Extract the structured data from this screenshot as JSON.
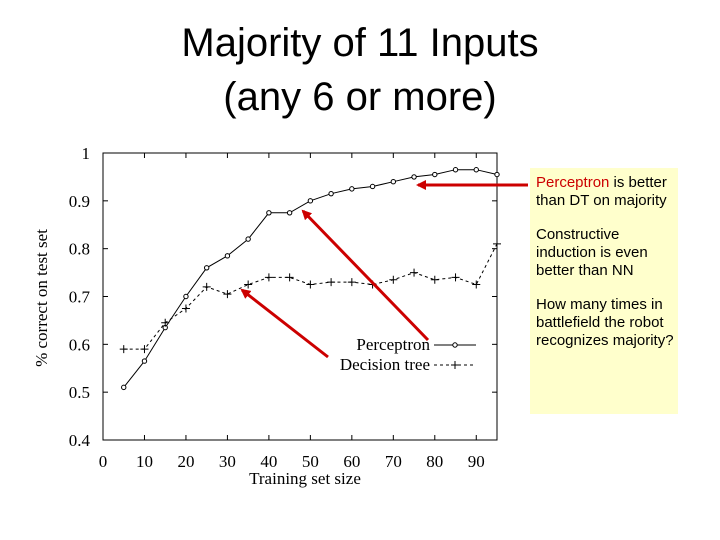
{
  "title_line1": "Majority of 11 Inputs",
  "title_line2": "(any 6 or more)",
  "notes": {
    "n1_highlight": "Perceptron",
    "n1_rest": " is better than DT on majority",
    "n2": "Constructive induction is even better than NN",
    "n3": "How many times in battlefield the robot recognizes majority?"
  },
  "colors": {
    "arrow": "#cc0000",
    "note_bg": "#ffffcc"
  },
  "chart_data": {
    "type": "line",
    "xlabel": "Training set size",
    "ylabel": "% correct on test set",
    "xlim": [
      0,
      95
    ],
    "ylim": [
      0.4,
      1.0
    ],
    "xticks": [
      0,
      10,
      20,
      30,
      40,
      50,
      60,
      70,
      80,
      90
    ],
    "yticks": [
      0.4,
      0.5,
      0.6,
      0.7,
      0.8,
      0.9,
      1
    ],
    "ytick_labels": [
      "0.4",
      "0.5",
      "0.6",
      "0.7",
      "0.8",
      "0.9",
      "1"
    ],
    "legend": "inside, middle-right",
    "grid": false,
    "series": [
      {
        "name": "Perceptron",
        "marker": "circle",
        "style": "solid",
        "points": [
          [
            5,
            0.51
          ],
          [
            10,
            0.565
          ],
          [
            15,
            0.635
          ],
          [
            20,
            0.7
          ],
          [
            25,
            0.76
          ],
          [
            30,
            0.785
          ],
          [
            35,
            0.82
          ],
          [
            40,
            0.875
          ],
          [
            45,
            0.875
          ],
          [
            50,
            0.9
          ],
          [
            55,
            0.915
          ],
          [
            60,
            0.925
          ],
          [
            65,
            0.93
          ],
          [
            70,
            0.94
          ],
          [
            75,
            0.95
          ],
          [
            80,
            0.955
          ],
          [
            85,
            0.965
          ],
          [
            90,
            0.965
          ],
          [
            95,
            0.955
          ]
        ]
      },
      {
        "name": "Decision tree",
        "marker": "plus",
        "style": "dashed",
        "points": [
          [
            5,
            0.59
          ],
          [
            10,
            0.59
          ],
          [
            15,
            0.645
          ],
          [
            20,
            0.675
          ],
          [
            25,
            0.72
          ],
          [
            30,
            0.705
          ],
          [
            35,
            0.725
          ],
          [
            40,
            0.74
          ],
          [
            45,
            0.74
          ],
          [
            50,
            0.725
          ],
          [
            55,
            0.73
          ],
          [
            60,
            0.73
          ],
          [
            65,
            0.725
          ],
          [
            70,
            0.735
          ],
          [
            75,
            0.75
          ],
          [
            80,
            0.735
          ],
          [
            85,
            0.74
          ],
          [
            90,
            0.725
          ],
          [
            95,
            0.81
          ]
        ]
      }
    ]
  }
}
